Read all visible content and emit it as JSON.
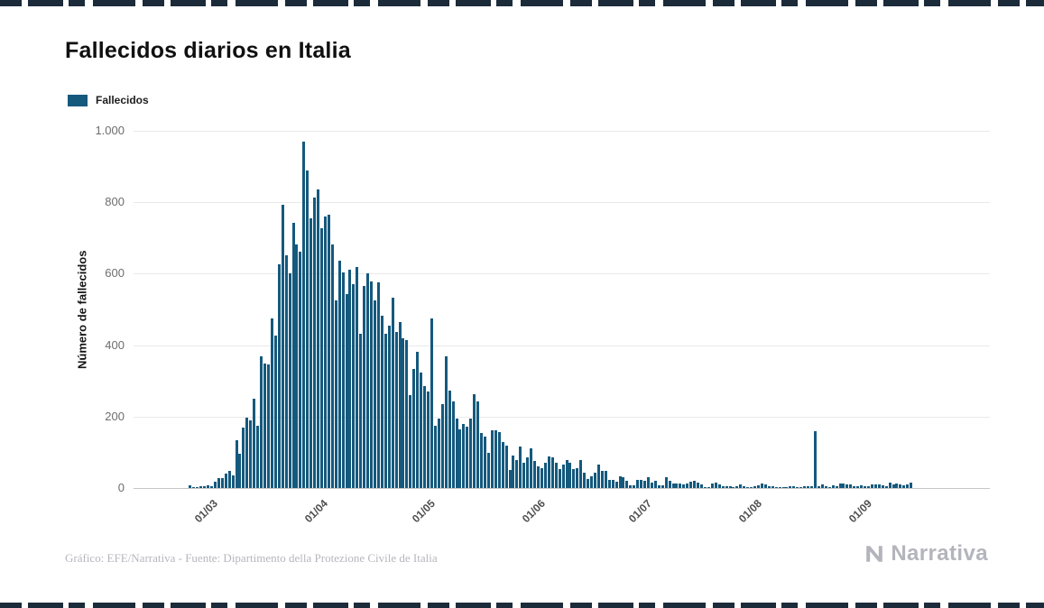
{
  "page": {
    "background_color": "#ffffff",
    "decorative_border_color": "#1c2b3a"
  },
  "header": {
    "title": "Fallecidos diarios en Italia"
  },
  "legend": {
    "label": "Fallecidos",
    "swatch_color": "#15597d"
  },
  "chart_data": {
    "type": "bar",
    "title": "Fallecidos diarios en Italia",
    "series_name": "Fallecidos",
    "xlabel": "",
    "ylabel": "Número de fallecidos",
    "ylim": [
      0,
      1000
    ],
    "grid": "horizontal",
    "legend_position": "top-left",
    "bar_color": "#15597d",
    "y_ticks": [
      {
        "value": 0,
        "label": "0"
      },
      {
        "value": 200,
        "label": "200"
      },
      {
        "value": 400,
        "label": "400"
      },
      {
        "value": 600,
        "label": "600"
      },
      {
        "value": 800,
        "label": "800"
      },
      {
        "value": 1000,
        "label": "1.000"
      }
    ],
    "x_ticks": [
      "01/03",
      "01/04",
      "01/05",
      "01/06",
      "01/07",
      "01/08",
      "01/09"
    ],
    "start_date": "24/02/2020",
    "end_date": "14/09/2020",
    "frequency": "daily",
    "monthly_values": [
      {
        "month": "02/2020",
        "first_day": 24,
        "values": [
          7,
          3,
          2,
          5,
          4,
          8
        ]
      },
      {
        "month": "03/2020",
        "first_day": 1,
        "values": [
          5,
          18,
          27,
          28,
          41,
          49,
          36,
          133,
          97,
          168,
          196,
          189,
          250,
          175,
          368,
          349,
          345,
          475,
          427,
          627,
          793,
          651,
          601,
          743,
          683,
          662,
          969,
          889,
          756,
          812,
          837
        ]
      },
      {
        "month": "04/2020",
        "first_day": 1,
        "values": [
          727,
          760,
          766,
          681,
          525,
          636,
          604,
          542,
          610,
          570,
          619,
          431,
          566,
          602,
          578,
          525,
          575,
          482,
          433,
          454,
          534,
          437,
          464,
          420,
          415,
          260,
          333,
          382,
          323,
          285
        ]
      },
      {
        "month": "05/2020",
        "first_day": 1,
        "values": [
          269,
          474,
          174,
          195,
          236,
          369,
          274,
          243,
          194,
          165,
          179,
          172,
          195,
          262,
          242,
          153,
          145,
          99,
          162,
          161,
          156,
          130,
          119,
          50,
          92,
          78,
          117,
          70,
          87,
          111,
          75
        ]
      },
      {
        "month": "06/2020",
        "first_day": 1,
        "values": [
          60,
          55,
          71,
          88,
          85,
          72,
          53,
          65,
          79,
          71,
          53,
          56,
          78,
          44,
          26,
          34,
          43,
          66,
          47,
          49,
          24,
          23,
          18,
          33,
          30,
          20,
          8,
          8,
          23,
          23
        ]
      },
      {
        "month": "07/2020",
        "first_day": 1,
        "values": [
          21,
          30,
          15,
          21,
          8,
          8,
          30,
          20,
          12,
          12,
          13,
          9,
          13,
          17,
          20,
          16,
          11,
          3,
          3,
          13,
          15,
          10,
          6,
          5,
          5,
          2,
          5,
          11,
          6,
          3,
          3
        ]
      },
      {
        "month": "08/2020",
        "first_day": 1,
        "values": [
          5,
          8,
          12,
          10,
          6,
          6,
          3,
          2,
          3,
          2,
          5,
          6,
          3,
          2,
          4,
          4,
          4,
          160,
          6,
          9,
          4,
          3,
          7,
          4,
          13,
          13,
          9,
          9,
          6,
          4,
          8
        ]
      },
      {
        "month": "09/2020",
        "first_day": 1,
        "values": [
          6,
          6,
          10,
          10,
          9,
          8,
          6,
          14,
          10,
          13,
          10,
          7,
          9,
          14
        ]
      }
    ]
  },
  "footer": {
    "credit": "Gráfico: EFE/Narrativa - Fuente: Dipartimento della Protezione Civile de Italia",
    "logo_text": "Narrativa",
    "logo_color": "#b4b4bc"
  }
}
